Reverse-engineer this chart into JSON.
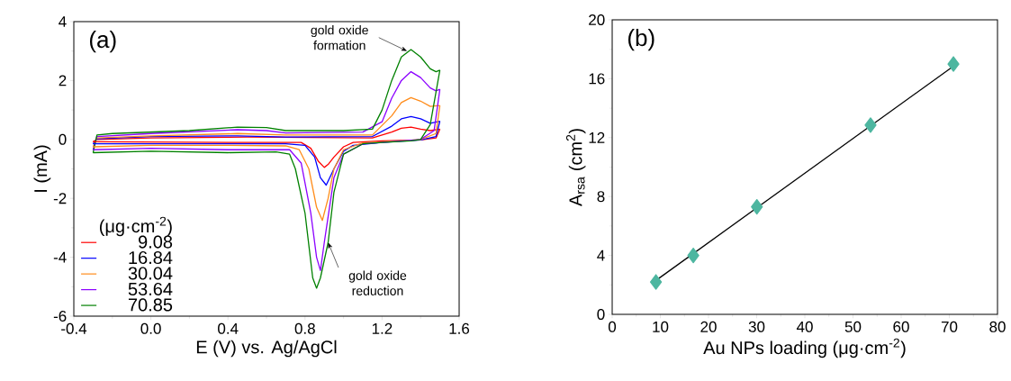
{
  "chart_data": [
    {
      "type": "line",
      "xlabel": "E (V) vs. Ag/AgCl",
      "ylabel": "I (mA)",
      "legend_title": "(μg·cm$^{-2}$)",
      "legend": "bottom left",
      "xlim": [
        -0.4,
        1.6
      ],
      "xticks": [
        -0.4,
        {
          "value": 0,
          "label": "0.0"
        },
        0.4,
        0.8,
        1.2,
        1.6
      ],
      "ylim": [
        -6,
        4
      ],
      "yticks": [
        -6,
        -4,
        -2,
        0,
        2,
        4
      ],
      "line_style": "solid",
      "marker": "none",
      "annotations": [
        "(a)",
        {
          "text": "gold oxide formation",
          "x": 1.33,
          "y": 3.0
        },
        {
          "text": "gold oxide reduction",
          "x": 0.92,
          "y": -3.5
        }
      ],
      "series": [
        {
          "name": "9.08",
          "color": "#ff0000",
          "x": [
            -0.3,
            -0.28,
            0.0,
            0.5,
            1.15,
            1.25,
            1.3,
            1.35,
            1.4,
            1.45,
            1.5
          ],
          "values": [
            -0.08,
            0.0,
            0.05,
            0.08,
            0.05,
            0.25,
            0.38,
            0.42,
            0.35,
            0.3,
            0.35
          ]
        },
        {
          "name": "16.84",
          "color": "#0000ff",
          "x": [
            -0.3,
            -0.28,
            0.0,
            0.45,
            0.7,
            1.15,
            1.25,
            1.3,
            1.35,
            1.4,
            1.45,
            1.5
          ],
          "values": [
            -0.15,
            0.02,
            0.1,
            0.12,
            0.08,
            0.1,
            0.45,
            0.7,
            0.78,
            0.7,
            0.55,
            0.62
          ]
        },
        {
          "name": "30.04",
          "color": "#ff8c1a",
          "x": [
            -0.3,
            -0.28,
            0.0,
            0.45,
            0.7,
            1.15,
            1.25,
            1.3,
            1.35,
            1.4,
            1.45,
            1.5
          ],
          "values": [
            -0.25,
            0.05,
            0.12,
            0.2,
            0.15,
            0.15,
            0.8,
            1.25,
            1.42,
            1.3,
            1.12,
            1.15
          ]
        },
        {
          "name": "53.64",
          "color": "#8b00ff",
          "x": [
            -0.3,
            -0.28,
            0.0,
            0.45,
            0.6,
            0.7,
            1.1,
            1.2,
            1.25,
            1.3,
            1.35,
            1.4,
            1.45,
            1.48,
            1.5
          ],
          "values": [
            -0.35,
            0.1,
            0.2,
            0.33,
            0.3,
            0.22,
            0.25,
            0.6,
            1.4,
            2.0,
            2.3,
            2.1,
            1.75,
            1.65,
            1.7
          ]
        },
        {
          "name": "70.85",
          "color": "#008000",
          "x": [
            -0.3,
            -0.28,
            -0.2,
            0.2,
            0.45,
            0.6,
            0.7,
            1.0,
            1.15,
            1.2,
            1.25,
            1.3,
            1.35,
            1.4,
            1.45,
            1.48,
            1.5
          ],
          "values": [
            -0.45,
            0.15,
            0.2,
            0.3,
            0.42,
            0.4,
            0.3,
            0.3,
            0.35,
            1.0,
            2.0,
            2.8,
            3.05,
            2.8,
            2.4,
            2.3,
            2.35
          ]
        },
        {
          "color": "#ff0000",
          "x": [
            -0.3,
            0.4,
            0.78,
            0.83,
            0.87,
            0.9,
            0.92,
            0.95,
            1.0,
            1.05,
            1.2,
            1.4,
            1.48,
            1.5
          ],
          "values": [
            -0.08,
            -0.1,
            -0.1,
            -0.3,
            -0.75,
            -0.95,
            -0.85,
            -0.6,
            -0.25,
            -0.1,
            -0.05,
            -0.02,
            0.05,
            0.35
          ]
        },
        {
          "color": "#0000ff",
          "x": [
            -0.3,
            0.4,
            0.7,
            0.8,
            0.85,
            0.88,
            0.91,
            0.95,
            1.0,
            1.05,
            1.2,
            1.4,
            1.48,
            1.5
          ],
          "values": [
            -0.15,
            -0.15,
            -0.15,
            -0.2,
            -0.6,
            -1.3,
            -1.55,
            -1.0,
            -0.4,
            -0.2,
            -0.1,
            -0.02,
            0.1,
            0.62
          ]
        },
        {
          "color": "#ff8c1a",
          "x": [
            -0.3,
            0.0,
            0.4,
            0.7,
            0.77,
            0.82,
            0.86,
            0.89,
            0.92,
            0.95,
            1.0,
            1.1,
            1.3,
            1.4,
            1.48,
            1.5
          ],
          "values": [
            -0.25,
            -0.2,
            -0.2,
            -0.22,
            -0.35,
            -1.0,
            -2.3,
            -2.75,
            -2.0,
            -1.0,
            -0.35,
            -0.12,
            -0.05,
            0.0,
            0.2,
            1.15
          ]
        },
        {
          "color": "#8b00ff",
          "x": [
            -0.3,
            0.0,
            0.4,
            0.72,
            0.78,
            0.83,
            0.86,
            0.88,
            0.9,
            0.95,
            1.0,
            1.1,
            1.3,
            1.4,
            1.47,
            1.5
          ],
          "values": [
            -0.35,
            -0.3,
            -0.35,
            -0.35,
            -0.8,
            -2.5,
            -4.0,
            -4.45,
            -3.5,
            -1.3,
            -0.5,
            -0.15,
            -0.05,
            0.0,
            0.3,
            1.7
          ]
        },
        {
          "color": "#008000",
          "x": [
            -0.3,
            0.0,
            0.4,
            0.65,
            0.72,
            0.75,
            0.8,
            0.84,
            0.86,
            0.88,
            0.92,
            0.95,
            1.0,
            1.1,
            1.2,
            1.35,
            1.4,
            1.45,
            1.5
          ],
          "values": [
            -0.45,
            -0.4,
            -0.45,
            -0.42,
            -0.5,
            -1.0,
            -2.5,
            -4.7,
            -5.05,
            -4.7,
            -3.5,
            -1.8,
            -0.5,
            -0.15,
            -0.1,
            -0.05,
            0.0,
            0.5,
            2.35
          ]
        }
      ]
    },
    {
      "type": "scatter",
      "xlabel": "Au NPs loading (μg·cm$^{-2}$)",
      "ylabel": "A$_{rsa}$ (cm$^{2}$)",
      "xlim": [
        0,
        80
      ],
      "xticks": [
        0,
        10,
        20,
        30,
        40,
        50,
        60,
        70,
        80
      ],
      "ylim": [
        0,
        20
      ],
      "yticks": [
        0,
        4,
        8,
        12,
        16,
        20
      ],
      "annotations": [
        "(b)"
      ],
      "series": [
        {
          "type": "line",
          "color": "#000000",
          "marker": "none",
          "line_style": "solid",
          "x": [
            9.08,
            70.85
          ],
          "values": [
            2.3,
            16.85
          ]
        },
        {
          "type": "scatter",
          "color": "#4db6a0",
          "marker": "diamond",
          "x": [
            9.08,
            16.84,
            30.04,
            53.64,
            70.85
          ],
          "values": [
            2.2,
            4.0,
            7.3,
            12.85,
            17.0
          ]
        }
      ]
    }
  ]
}
